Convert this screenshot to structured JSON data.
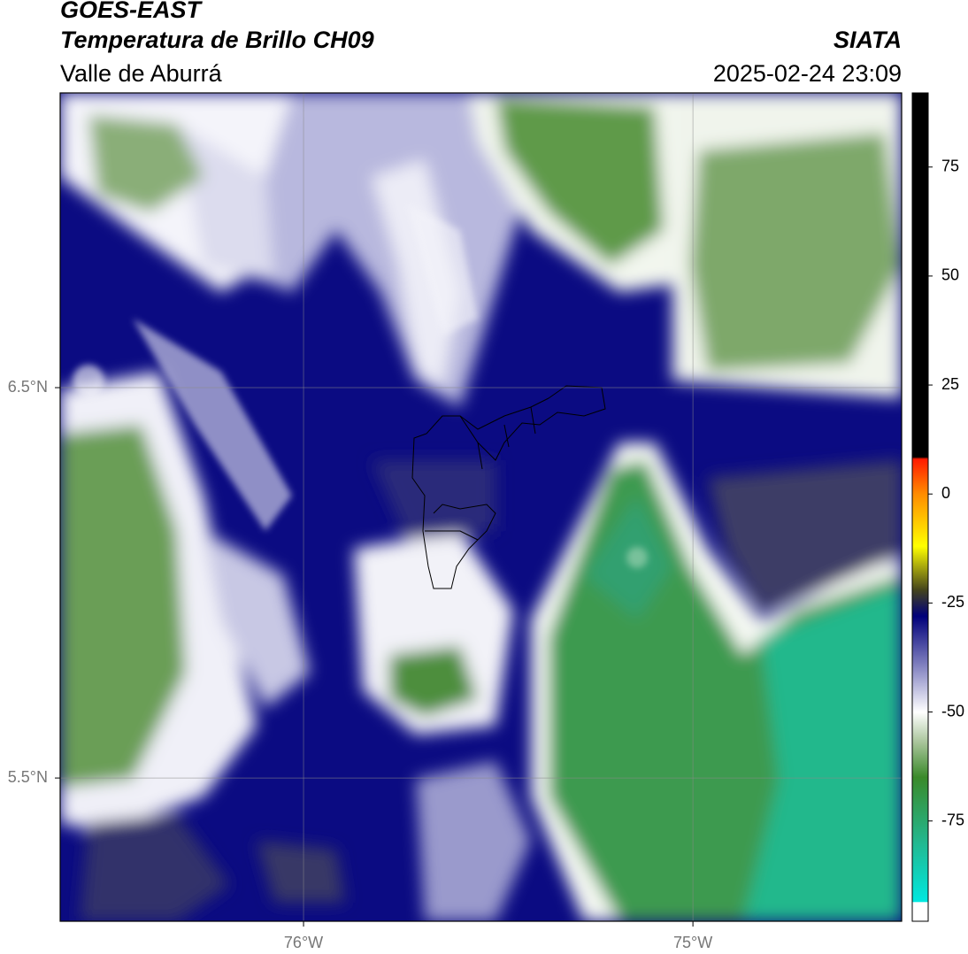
{
  "header": {
    "title": "GOES-EAST",
    "subtitle": "Temperatura de Brillo CH09",
    "region": "Valle de Aburrá",
    "source": "SIATA",
    "datetime": "2025-02-24 23:09"
  },
  "map": {
    "xlim": [
      -76.625,
      -74.464
    ],
    "ylim": [
      5.133,
      7.255
    ],
    "xticks": [
      {
        "value": -76,
        "label": "76°W"
      },
      {
        "value": -75,
        "label": "75°W"
      }
    ],
    "yticks": [
      {
        "value": 6.5,
        "label": "6.5°N"
      },
      {
        "value": 5.5,
        "label": "5.5°N"
      }
    ],
    "grid": true
  },
  "colorbar": {
    "lim": [
      -98,
      92
    ],
    "ticks": [
      75,
      50,
      25,
      0,
      -25,
      -50,
      -75
    ],
    "colormap": [
      {
        "value": -98,
        "color": "#ffffff"
      },
      {
        "value": -93.7,
        "color": "#ffffff"
      },
      {
        "value": -93.5,
        "color": "#00e8e0"
      },
      {
        "value": -80,
        "color": "#22b890"
      },
      {
        "value": -65,
        "color": "#3a8a2a"
      },
      {
        "value": -57,
        "color": "#a8c49a"
      },
      {
        "value": -50,
        "color": "#ffffff"
      },
      {
        "value": -42,
        "color": "#a0a0d0"
      },
      {
        "value": -28,
        "color": "#00007a"
      },
      {
        "value": -22,
        "color": "#44441c"
      },
      {
        "value": -12,
        "color": "#ffff00"
      },
      {
        "value": 0,
        "color": "#ff8c00"
      },
      {
        "value": 8,
        "color": "#ff1a00"
      },
      {
        "value": 8.5,
        "color": "#000000"
      },
      {
        "value": 92,
        "color": "#000000"
      }
    ]
  }
}
